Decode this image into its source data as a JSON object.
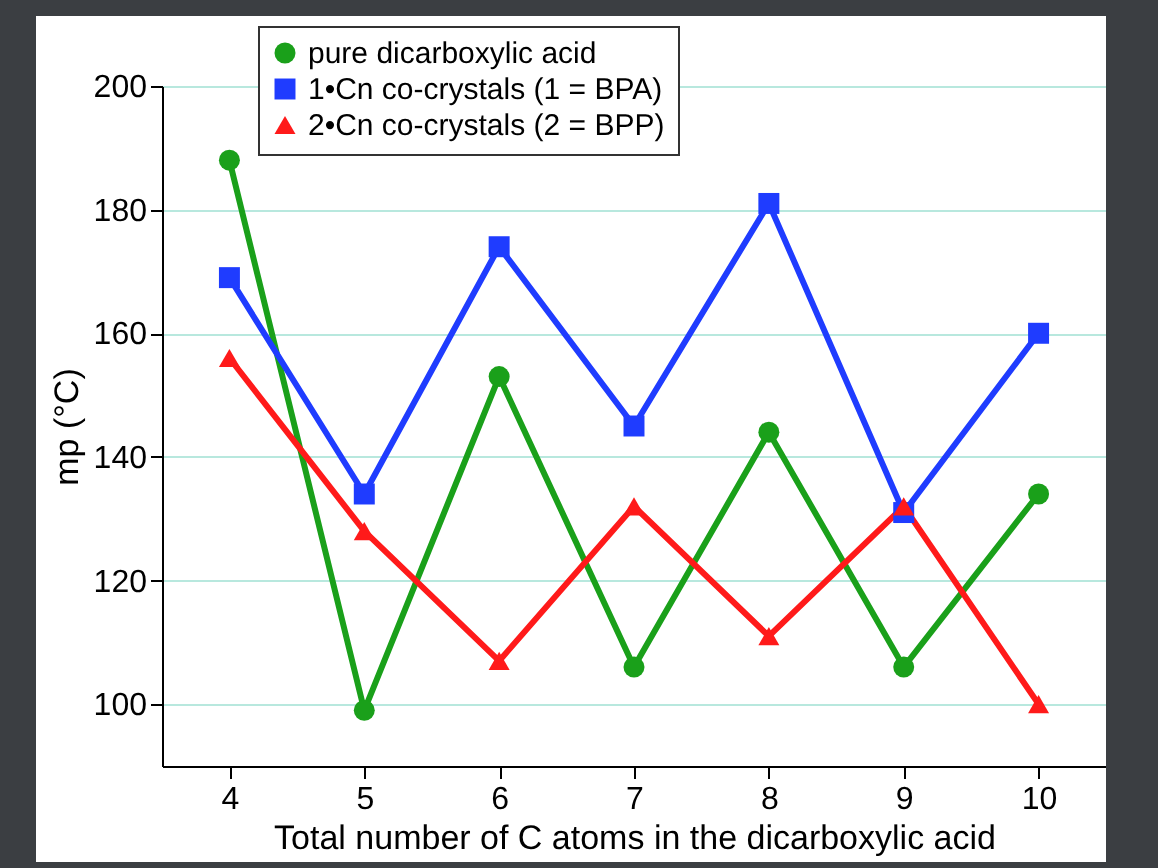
{
  "chart_data": {
    "type": "line",
    "xlabel": "Total number of C atoms in the dicarboxylic acid",
    "ylabel": "mp (°C)",
    "x": [
      4,
      5,
      6,
      7,
      8,
      9,
      10
    ],
    "xlim": [
      3.5,
      10.5
    ],
    "xticks": [
      4,
      5,
      6,
      7,
      8,
      9,
      10
    ],
    "ylim": [
      90,
      200
    ],
    "yticks": [
      100,
      120,
      140,
      160,
      180,
      200
    ],
    "grid": "y",
    "legend": "top left",
    "series": [
      {
        "name": "pure dicarboxylic acid",
        "color": "#1aa01a",
        "marker": "circle",
        "values": [
          188,
          99,
          153,
          106,
          144,
          106,
          134
        ]
      },
      {
        "name": "1•Cn co-crystals (1 = BPA)",
        "color": "#1f3cff",
        "marker": "square",
        "values": [
          169,
          134,
          174,
          145,
          181,
          131,
          160
        ]
      },
      {
        "name": "2•Cn co-crystals (2 = BPP)",
        "color": "#ff1a1a",
        "marker": "triangle",
        "values": [
          156,
          128,
          107,
          132,
          111,
          132,
          100
        ]
      }
    ]
  }
}
